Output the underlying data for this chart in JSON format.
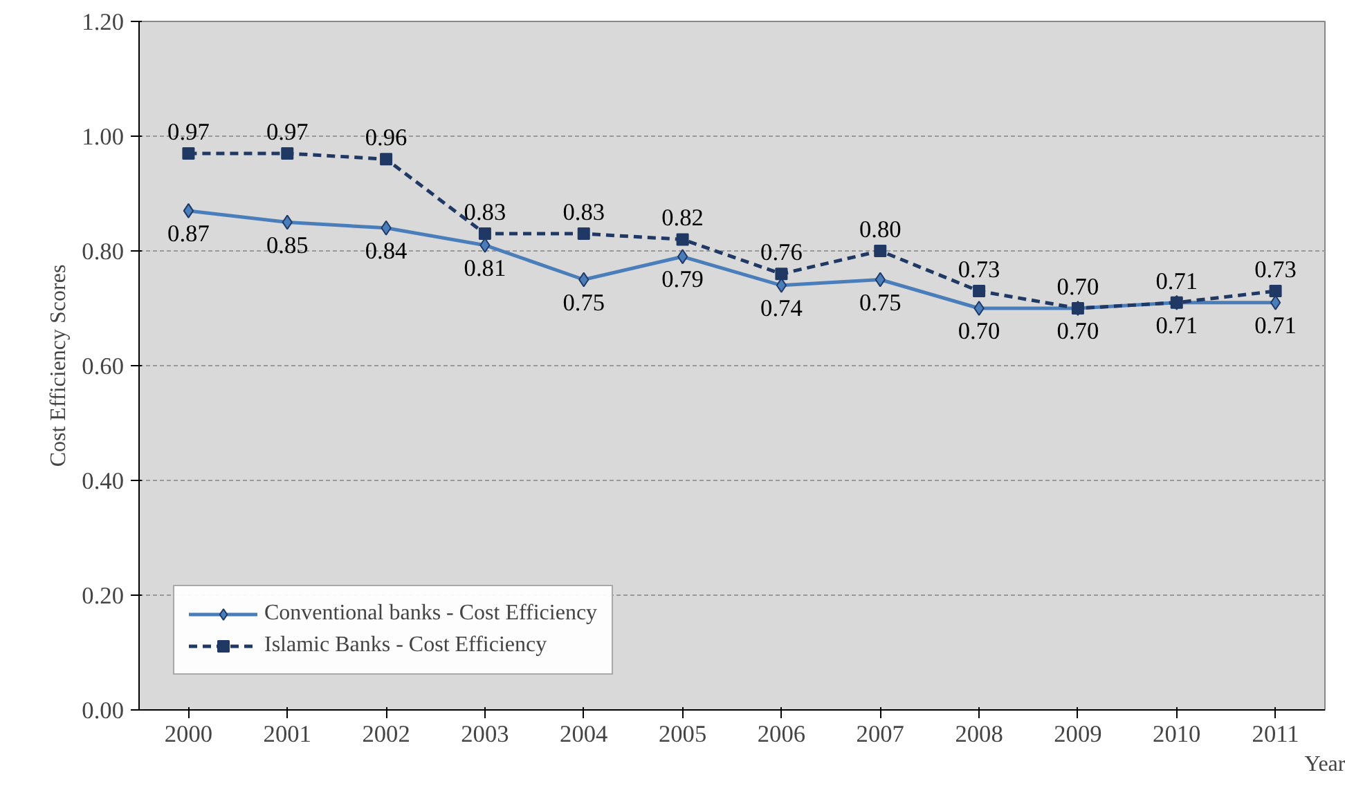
{
  "chart_data": {
    "type": "line",
    "xlabel": "Year",
    "ylabel": "Cost Efficiency Scores",
    "categories": [
      "2000",
      "2001",
      "2002",
      "2003",
      "2004",
      "2005",
      "2006",
      "2007",
      "2008",
      "2009",
      "2010",
      "2011"
    ],
    "ylim": [
      0,
      1.2
    ],
    "yticks": [
      {
        "value": 0,
        "label": "0.00"
      },
      {
        "value": 0.2,
        "label": "0.20"
      },
      {
        "value": 0.4,
        "label": "0.40"
      },
      {
        "value": 0.6,
        "label": "0.60"
      },
      {
        "value": 0.8,
        "label": "0.80"
      },
      {
        "value": 1.0,
        "label": "1.00"
      },
      {
        "value": 1.2,
        "label": "1.20"
      }
    ],
    "grid": "y",
    "legend": "bottom left",
    "series": [
      {
        "name": "Conventional banks - Cost Efficiency",
        "color": "#4a7ebb",
        "marker": "diamond",
        "line_style": "solid",
        "values": [
          0.87,
          0.85,
          0.84,
          0.81,
          0.75,
          0.79,
          0.74,
          0.75,
          0.7,
          0.7,
          0.71,
          0.71
        ],
        "value_labels": [
          "0.87",
          "0.85",
          "0.84",
          "0.81",
          "0.75",
          "0.79",
          "0.74",
          "0.75",
          "0.70",
          "0.70",
          "0.71",
          "0.71"
        ]
      },
      {
        "name": "Islamic Banks - Cost Efficiency",
        "color": "#1f3864",
        "marker": "square",
        "line_style": "dashed",
        "values": [
          0.97,
          0.97,
          0.96,
          0.83,
          0.83,
          0.82,
          0.76,
          0.8,
          0.73,
          0.7,
          0.71,
          0.73
        ],
        "value_labels": [
          "0.97",
          "0.97",
          "0.96",
          "0.83",
          "0.83",
          "0.82",
          "0.76",
          "0.80",
          "0.73",
          "0.70",
          "0.71",
          "0.73"
        ]
      }
    ]
  }
}
